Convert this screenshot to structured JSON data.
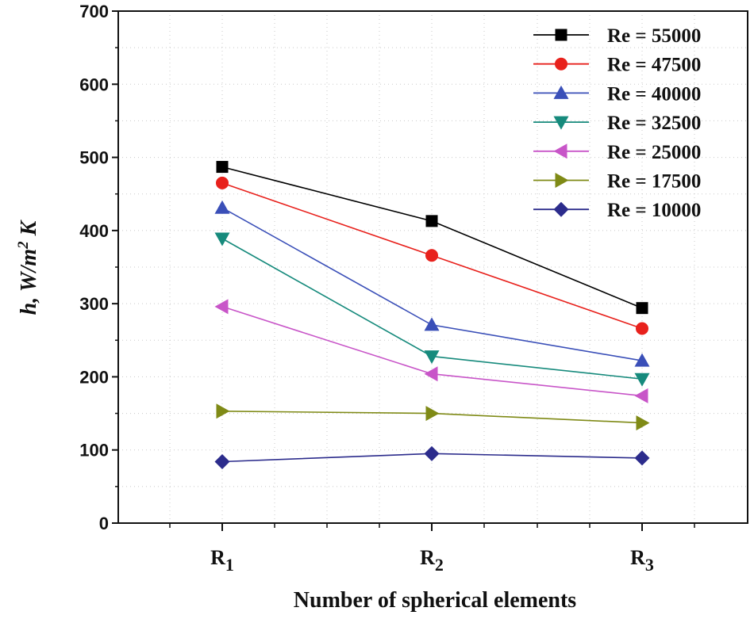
{
  "chart_data": {
    "type": "line",
    "title": "",
    "xlabel": "Number of spherical elements",
    "ylabel": "h, W/m2 K",
    "ylabel_parts": {
      "main": "h, W/m",
      "sup": "2",
      "tail": " K"
    },
    "categories": [
      {
        "base": "R",
        "sub": "1"
      },
      {
        "base": "R",
        "sub": "2"
      },
      {
        "base": "R",
        "sub": "3"
      }
    ],
    "ylim": [
      0,
      700
    ],
    "yticks": [
      "0",
      "100",
      "200",
      "300",
      "400",
      "500",
      "600",
      "700"
    ],
    "grid": true,
    "legend_position": "top-right",
    "series": [
      {
        "name": "Re = 55000",
        "color": "#000000",
        "marker": "square",
        "values": [
          487,
          413,
          294
        ]
      },
      {
        "name": "Re = 47500",
        "color": "#e8211c",
        "marker": "circle",
        "values": [
          465,
          366,
          266
        ]
      },
      {
        "name": "Re = 40000",
        "color": "#3a4fb8",
        "marker": "triangle-up",
        "values": [
          431,
          271,
          222
        ]
      },
      {
        "name": "Re =  32500",
        "color": "#168a7c",
        "marker": "triangle-down",
        "values": [
          389,
          228,
          197
        ]
      },
      {
        "name": "Re =  25000",
        "color": "#c855c8",
        "marker": "triangle-left",
        "values": [
          296,
          204,
          174
        ]
      },
      {
        "name": "Re =  17500",
        "color": "#7f8a16",
        "marker": "triangle-right",
        "values": [
          153,
          150,
          137
        ]
      },
      {
        "name": "Re =  10000",
        "color": "#2c2c8c",
        "marker": "diamond",
        "values": [
          84,
          95,
          89
        ]
      }
    ]
  }
}
